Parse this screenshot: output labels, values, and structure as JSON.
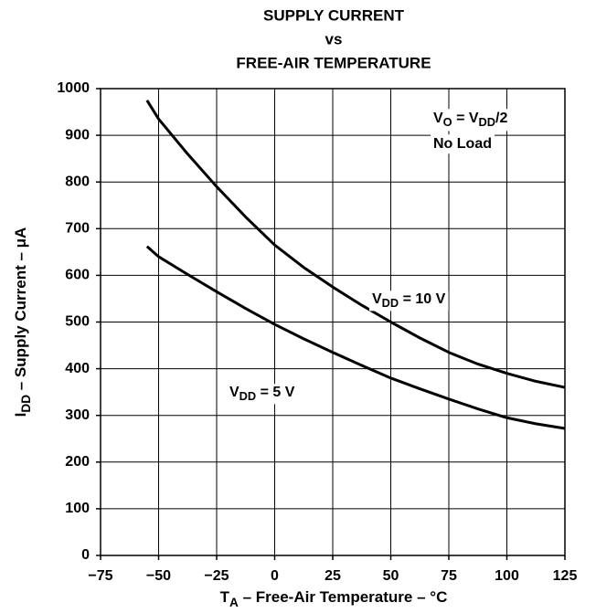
{
  "chart_data": {
    "type": "line",
    "title": [
      "SUPPLY CURRENT",
      "vs",
      "FREE-AIR TEMPERATURE"
    ],
    "xlabel": [
      {
        "text": "T"
      },
      {
        "text": "A",
        "sub": true
      },
      {
        "text": " – Free-Air Temperature – °C"
      }
    ],
    "ylabel": [
      {
        "text": "I"
      },
      {
        "text": "DD",
        "sub": true
      },
      {
        "text": " – Supply Current – μA"
      }
    ],
    "annotations": [
      [
        {
          "text": "V"
        },
        {
          "text": "O",
          "sub": true
        },
        {
          "text": " = V"
        },
        {
          "text": "DD",
          "sub": true
        },
        {
          "text": "/2"
        }
      ],
      [
        {
          "text": "No Load"
        }
      ]
    ],
    "xlim": [
      -75,
      125
    ],
    "xticks": [
      {
        "value": -75,
        "label": "−75"
      },
      {
        "value": -50,
        "label": "−50"
      },
      {
        "value": -25,
        "label": "−25"
      },
      0,
      25,
      50,
      75,
      100,
      125
    ],
    "ylim": [
      0,
      1000
    ],
    "yticks": [
      0,
      100,
      200,
      300,
      400,
      500,
      600,
      700,
      800,
      900,
      1000
    ],
    "grid": true,
    "series": [
      {
        "name": [
          {
            "text": "V"
          },
          {
            "text": "DD",
            "sub": true
          },
          {
            "text": " = 10 V"
          }
        ],
        "color": "#000000",
        "x": [
          -55,
          -50,
          -37.5,
          -25,
          -12.5,
          0,
          12.5,
          25,
          37.5,
          50,
          62.5,
          75,
          87.5,
          100,
          112.5,
          125
        ],
        "values": [
          975,
          935,
          860,
          790,
          725,
          665,
          617,
          575,
          536,
          500,
          466,
          435,
          410,
          390,
          373,
          360
        ]
      },
      {
        "name": [
          {
            "text": "V"
          },
          {
            "text": "DD",
            "sub": true
          },
          {
            "text": " = 5 V"
          }
        ],
        "color": "#000000",
        "x": [
          -55,
          -50,
          -37.5,
          -25,
          -12.5,
          0,
          12.5,
          25,
          37.5,
          50,
          62.5,
          75,
          87.5,
          100,
          112.5,
          125
        ],
        "values": [
          662,
          640,
          602,
          565,
          529,
          495,
          464,
          435,
          407,
          380,
          357,
          335,
          314,
          295,
          282,
          272
        ]
      }
    ]
  }
}
